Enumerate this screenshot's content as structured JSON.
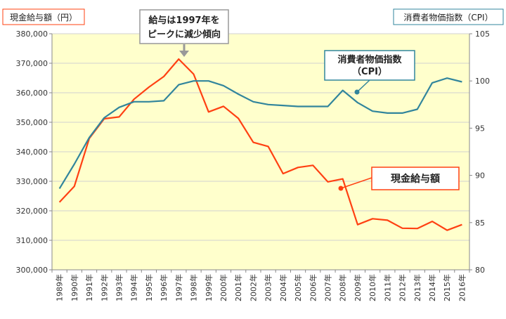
{
  "chart_data": {
    "type": "line",
    "categories": [
      "1989年",
      "1990年",
      "1991年",
      "1992年",
      "1993年",
      "1994年",
      "1995年",
      "1996年",
      "1997年",
      "1998年",
      "1999年",
      "2000年",
      "2001年",
      "2002年",
      "2003年",
      "2004年",
      "2005年",
      "2006年",
      "2007年",
      "2008年",
      "2009年",
      "2010年",
      "2011年",
      "2012年",
      "2013年",
      "2014年",
      "2015年",
      "2016年"
    ],
    "left_axis": {
      "title": "現金給与額（円）",
      "range": [
        300000,
        380000
      ],
      "ticks": [
        "300,000",
        "310,000",
        "320,000",
        "330,000",
        "340,000",
        "350,000",
        "360,000",
        "370,000",
        "380,000"
      ]
    },
    "right_axis": {
      "title": "消費者物価指数（CPI）",
      "range": [
        80,
        105
      ],
      "ticks": [
        "80",
        "85",
        "90",
        "95",
        "100",
        "105"
      ]
    },
    "series": [
      {
        "name": "現金給与額",
        "axis": "left",
        "color": "#ff4012",
        "values": [
          322900,
          328300,
          344500,
          351200,
          351800,
          357800,
          361900,
          365500,
          371400,
          366300,
          353500,
          355400,
          351300,
          343200,
          341800,
          332600,
          334700,
          335400,
          329800,
          330800,
          315300,
          317300,
          316800,
          314100,
          314000,
          316400,
          313400,
          315300
        ]
      },
      {
        "name": "消費者物価指数（CPI）",
        "axis": "right",
        "color": "#31859c",
        "values": [
          88.6,
          91.2,
          94.0,
          96.1,
          97.2,
          97.8,
          97.8,
          97.9,
          99.6,
          100.0,
          100.0,
          99.5,
          98.6,
          97.8,
          97.5,
          97.4,
          97.3,
          97.3,
          97.3,
          99.0,
          97.7,
          96.8,
          96.6,
          96.6,
          97.0,
          99.8,
          100.3,
          99.9
        ]
      }
    ],
    "grid": "horizontal",
    "annotations": {
      "peak": "給与は1997年を\nピークに減少傾向",
      "cpi_label": "消費者物価指数\n（CPI）",
      "wage_label": "現金給与額"
    }
  }
}
